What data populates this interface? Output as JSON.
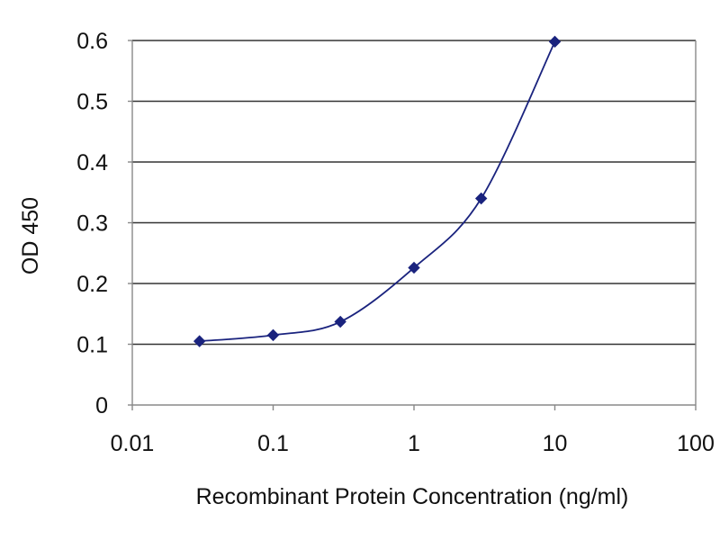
{
  "chart_data": {
    "type": "line",
    "title": "",
    "xlabel": "Recombinant Protein Concentration (ng/ml)",
    "ylabel": "OD 450",
    "x_scale": "log",
    "xlim": [
      0.01,
      100
    ],
    "ylim": [
      0,
      0.6
    ],
    "x_ticks": [
      "0.01",
      "0.1",
      "1",
      "10",
      "100"
    ],
    "y_ticks": [
      "0",
      "0.1",
      "0.2",
      "0.3",
      "0.4",
      "0.5",
      "0.6"
    ],
    "grid": "horizontal",
    "legend": "none",
    "series": [
      {
        "x": [
          0.03,
          0.1,
          0.3,
          1,
          3,
          10
        ],
        "y": [
          0.105,
          0.115,
          0.137,
          0.226,
          0.34,
          0.598
        ]
      }
    ],
    "colors": {
      "series": "#1a237e",
      "grid": "#333333",
      "axis": "#888888"
    }
  }
}
